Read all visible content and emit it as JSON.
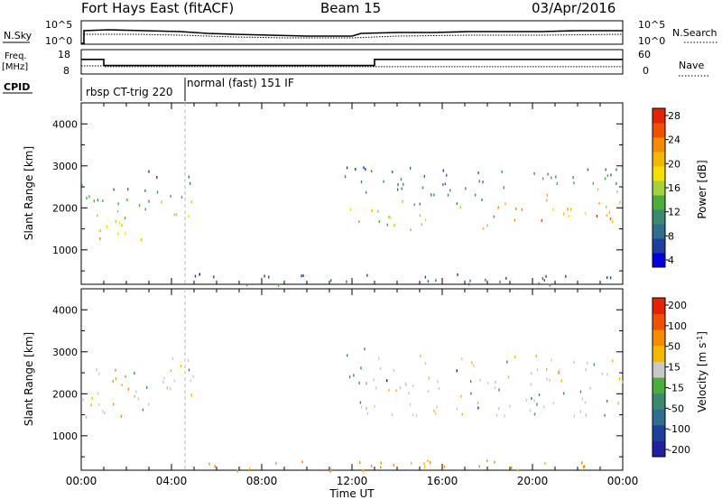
{
  "header": {
    "station": "Fort Hays East (fitACF)",
    "beam": "Beam 15",
    "date": "03/Apr/2016"
  },
  "status_panels": {
    "nsky_label": "N.Sky",
    "nsearch_label": "N.Search",
    "freq_label_1": "Freq.",
    "freq_label_2": "[MHz]",
    "nave_label": "Nave",
    "cpid_label": "CPID",
    "nsky_ticks": [
      "10^5",
      "10^0"
    ],
    "nsearch_ticks": [
      "10^5",
      "10^0"
    ],
    "freq_ticks": [
      "18",
      "8"
    ],
    "nave_ticks": [
      "60",
      "0"
    ],
    "cpid_programs": [
      {
        "name": "rbsp CT-trig 220",
        "start": 0.0,
        "end": 4.6
      },
      {
        "name": "normal (fast) 151 IF",
        "start": 4.6,
        "end": 24.0
      }
    ],
    "freq_steps": [
      {
        "start": 0.0,
        "end": 1.0,
        "mhz": 14.0
      },
      {
        "start": 1.0,
        "end": 13.0,
        "mhz": 11.5
      },
      {
        "start": 13.0,
        "end": 24.0,
        "mhz": 14.0
      }
    ],
    "nave_steps": [
      {
        "start": 0.0,
        "end": 1.0,
        "value": 20
      },
      {
        "start": 1.0,
        "end": 24.0,
        "value": 18
      }
    ]
  },
  "axes": {
    "ylabel": "Slant Range [km]",
    "xlabel": "Time UT",
    "x_ticks": [
      "00:00",
      "04:00",
      "08:00",
      "12:00",
      "16:00",
      "20:00",
      "00:00"
    ],
    "y_ticks": [
      "1000",
      "2000",
      "3000",
      "4000"
    ],
    "xlim": [
      0,
      24
    ],
    "ylim": [
      180,
      4500
    ]
  },
  "power_colorbar": {
    "label": "Power [dB]",
    "ticks": [
      "28",
      "24",
      "20",
      "16",
      "12",
      "8",
      "4"
    ],
    "colors": [
      "#0000e0",
      "#1f3f9f",
      "#2e6e8e",
      "#3a8a70",
      "#4cae3a",
      "#a3d23c",
      "#f5e000",
      "#f5b800",
      "#f58c00",
      "#f05000",
      "#e62200"
    ]
  },
  "velocity_colorbar": {
    "label": "Velocity [m s",
    "label_sup": "-1",
    "label_end": "]",
    "ticks": [
      "200",
      "100",
      "50",
      "15",
      "-15",
      "-50",
      "-100",
      "-200"
    ],
    "colors": [
      "#2020a0",
      "#1f3f9f",
      "#2e6e8e",
      "#3a8a70",
      "#4cae3a",
      "#c8c8c8",
      "#f5b800",
      "#f58c00",
      "#f05000",
      "#e62200"
    ]
  },
  "chart_data": [
    {
      "type": "heatmap",
      "title": "Power",
      "xlabel": "Time UT",
      "ylabel": "Slant Range [km]",
      "xlim": [
        0,
        24
      ],
      "ylim": [
        180,
        4500
      ],
      "value_units": "dB",
      "clim": [
        0,
        30
      ],
      "regions": [
        {
          "t0": 0.0,
          "t1": 1.0,
          "r0": 1100,
          "r1": 2700,
          "peak_db": 28
        },
        {
          "t0": 1.0,
          "t1": 2.8,
          "r0": 1200,
          "r1": 2600,
          "peak_db": 24
        },
        {
          "t0": 2.8,
          "t1": 5.0,
          "r0": 1700,
          "r1": 2900,
          "peak_db": 20
        },
        {
          "t0": 11.6,
          "t1": 13.0,
          "r0": 1700,
          "r1": 3100,
          "peak_db": 22
        },
        {
          "t0": 13.0,
          "t1": 18.0,
          "r0": 1500,
          "r1": 3000,
          "peak_db": 20
        },
        {
          "t0": 18.0,
          "t1": 24.0,
          "r0": 1700,
          "r1": 3000,
          "peak_db": 28
        },
        {
          "t0": 5.0,
          "t1": 24.0,
          "r0": 180,
          "r1": 450,
          "peak_db": 12
        }
      ]
    },
    {
      "type": "heatmap",
      "title": "Velocity",
      "xlabel": "Time UT",
      "ylabel": "Slant Range [km]",
      "xlim": [
        0,
        24
      ],
      "ylim": [
        180,
        4500
      ],
      "value_units": "m s-1",
      "clim": [
        -200,
        200
      ],
      "regions": [
        {
          "t0": 0.0,
          "t1": 1.2,
          "r0": 1150,
          "r1": 2700,
          "velocity": -5
        },
        {
          "t0": 1.2,
          "t1": 2.2,
          "r0": 1150,
          "r1": 2600,
          "velocity": -60
        },
        {
          "t0": 2.2,
          "t1": 5.0,
          "r0": 1600,
          "r1": 2900,
          "velocity": 0
        },
        {
          "t0": 11.6,
          "t1": 12.6,
          "r0": 1700,
          "r1": 3100,
          "velocity": 30
        },
        {
          "t0": 12.6,
          "t1": 24.0,
          "r0": 1500,
          "r1": 3000,
          "velocity": 0
        },
        {
          "t0": 5.0,
          "t1": 24.0,
          "r0": 180,
          "r1": 450,
          "velocity": -60
        }
      ]
    }
  ]
}
